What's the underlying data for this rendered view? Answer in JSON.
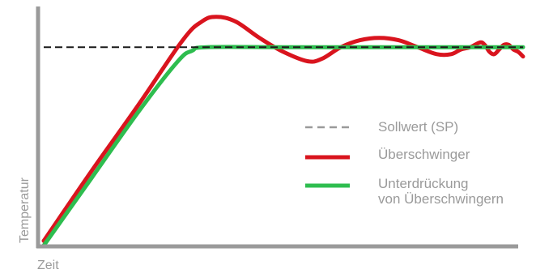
{
  "chart_data": {
    "type": "line",
    "title": "",
    "xlabel": "Zeit",
    "ylabel": "Temperatur",
    "grid": false,
    "legend_position": "right",
    "xlim": [
      0,
      100
    ],
    "ylim": [
      0,
      100
    ],
    "series": [
      {
        "name": "Sollwert (SP)",
        "color": "#1a1a1a",
        "style": "dashed",
        "points": [
          [
            0,
            85
          ],
          [
            100,
            85
          ]
        ]
      },
      {
        "name": "Überschwinger",
        "color": "#d9141e",
        "style": "solid",
        "points": [
          [
            0,
            2
          ],
          [
            10,
            32
          ],
          [
            20,
            61
          ],
          [
            29,
            88
          ],
          [
            33,
            96
          ],
          [
            36,
            98
          ],
          [
            40,
            96
          ],
          [
            45,
            89
          ],
          [
            50,
            83
          ],
          [
            55,
            79
          ],
          [
            58,
            80
          ],
          [
            62,
            85
          ],
          [
            66,
            88
          ],
          [
            70,
            89
          ],
          [
            74,
            88
          ],
          [
            78,
            85
          ],
          [
            82,
            82
          ],
          [
            85,
            82
          ],
          [
            87,
            84
          ],
          [
            89,
            85
          ],
          [
            91,
            87
          ],
          [
            92,
            86
          ],
          [
            93,
            83
          ],
          [
            94,
            82
          ],
          [
            95,
            84
          ],
          [
            96,
            86
          ],
          [
            97,
            86
          ],
          [
            98,
            84
          ],
          [
            99,
            83
          ],
          [
            100,
            81
          ]
        ]
      },
      {
        "name": "Unterdrückung von Überschwingern",
        "color": "#2ebd4f",
        "style": "solid",
        "points": [
          [
            0,
            0
          ],
          [
            10,
            29
          ],
          [
            20,
            58
          ],
          [
            28,
            79
          ],
          [
            31,
            83.5
          ],
          [
            34,
            85
          ],
          [
            50,
            85
          ],
          [
            70,
            85
          ],
          [
            90,
            85
          ],
          [
            100,
            85
          ]
        ]
      }
    ],
    "legend": [
      {
        "label": "Sollwert (SP)",
        "color": "#9a9a9a",
        "style": "dashed"
      },
      {
        "label": "Überschwinger",
        "color": "#d9141e",
        "style": "solid"
      },
      {
        "label": "Unterdrückung\nvon Überschwingern",
        "color": "#2ebd4f",
        "style": "solid"
      }
    ]
  }
}
